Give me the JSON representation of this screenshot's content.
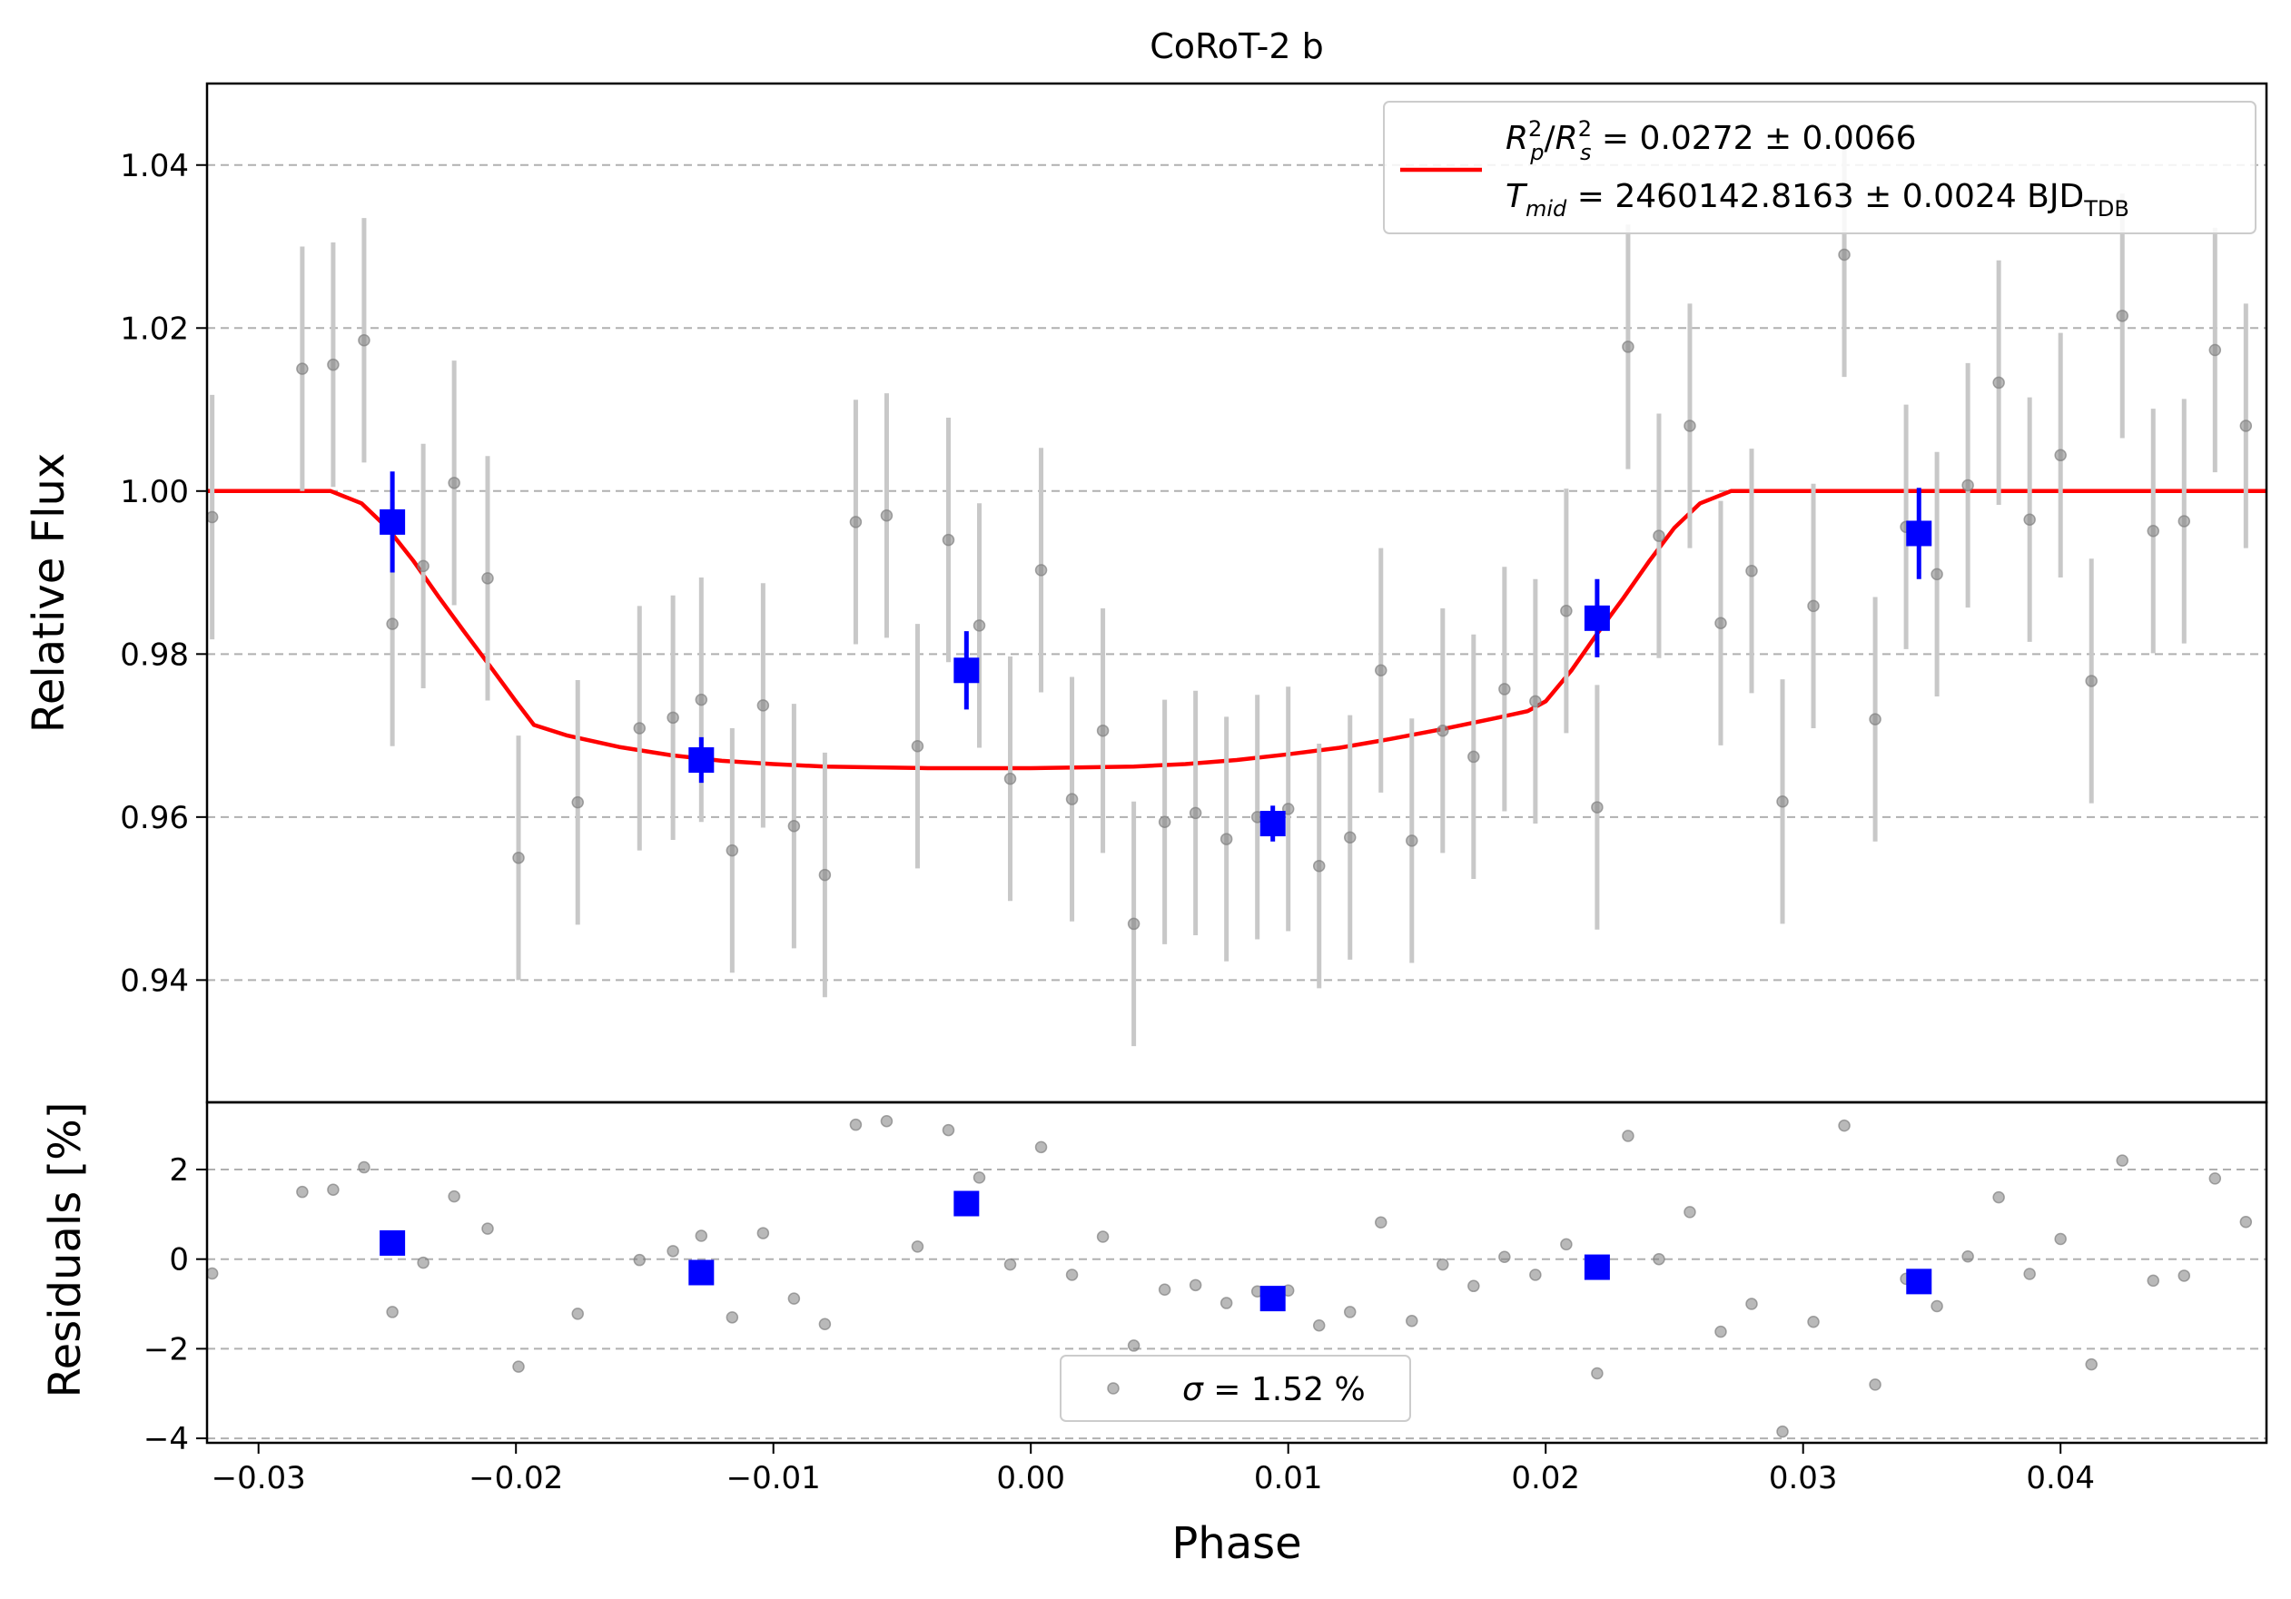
{
  "chart_data": [
    {
      "type": "scatter",
      "panel": "top",
      "title": "CoRoT-2 b",
      "xlabel": "",
      "ylabel": "Relative Flux",
      "xlim": [
        -0.032,
        0.048
      ],
      "ylim": [
        0.925,
        1.05
      ],
      "xticks_hidden": true,
      "yticks": [
        0.94,
        0.96,
        0.98,
        1.0,
        1.02,
        1.04
      ],
      "ytick_labels": [
        "0.94",
        "0.96",
        "0.98",
        "1.00",
        "1.02",
        "1.04"
      ],
      "grid": "horizontal-dashed",
      "legend_position": "top-right",
      "legend": [
        {
          "line1_math": "R_p^2/R_s^2",
          "line1_value": " = 0.0272 ± 0.0066",
          "line2_math": "T_mid",
          "line2_value": " = 2460142.8163 ± 0.0024 BJD",
          "line2_sub": "TDB",
          "color": "#ff0000"
        }
      ],
      "series": [
        {
          "kind": "data",
          "color": "#808080",
          "x": [
            -0.0318,
            -0.0283,
            -0.0271,
            -0.0259,
            -0.0248,
            -0.0236,
            -0.0224,
            -0.0211,
            -0.0199,
            -0.0176,
            -0.0152,
            -0.0139,
            -0.0128,
            -0.0116,
            -0.0104,
            -0.0092,
            -0.008,
            -0.0068,
            -0.0056,
            -0.0044,
            -0.0032,
            -0.002,
            -0.0008,
            0.0004,
            0.0016,
            0.0028,
            0.004,
            0.0052,
            0.0064,
            0.0076,
            0.0088,
            0.01,
            0.0112,
            0.0124,
            0.0136,
            0.0148,
            0.016,
            0.0172,
            0.0184,
            0.0196,
            0.0208,
            0.022,
            0.0232,
            0.0244,
            0.0256,
            0.0268,
            0.028,
            0.0292,
            0.0304,
            0.0316,
            0.0328,
            0.034,
            0.0352,
            0.0364,
            0.0376,
            0.0388,
            0.04,
            0.0412,
            0.0424,
            0.0436,
            0.0448,
            0.046,
            0.0472,
            0.0482
          ],
          "y": [
            0.9968,
            1.015,
            1.0155,
            1.0185,
            0.9837,
            0.9908,
            1.001,
            0.9893,
            0.955,
            0.9618,
            0.9709,
            0.9722,
            0.9744,
            0.9559,
            0.9737,
            0.9589,
            0.9529,
            0.9962,
            0.997,
            0.9687,
            0.994,
            0.9835,
            0.9647,
            0.9903,
            0.9622,
            0.9706,
            0.9469,
            0.9594,
            0.9605,
            0.9573,
            0.96,
            0.961,
            0.954,
            0.9575,
            0.978,
            0.9571,
            0.9706,
            0.9674,
            0.9757,
            0.9742,
            0.9853,
            0.9612,
            1.0177,
            0.9945,
            1.008,
            0.9838,
            0.9902,
            0.9619,
            0.9859,
            1.029,
            0.972,
            0.9956,
            0.9898,
            1.0007,
            1.0133,
            0.9965,
            1.0044,
            0.9767,
            1.0215,
            0.9951,
            0.9963,
            1.0173,
            1.008,
            0.9989
          ],
          "yerr": 0.015
        },
        {
          "kind": "binned",
          "color": "#0000ff",
          "x": [
            -0.0248,
            -0.0128,
            -0.0025,
            0.0094,
            0.022,
            0.0345
          ],
          "y": [
            0.9962,
            0.967,
            0.978,
            0.9592,
            0.9844,
            0.9948
          ],
          "yerr": [
            0.0062,
            0.0028,
            0.0048,
            0.0022,
            0.0048,
            0.0056
          ]
        },
        {
          "kind": "model",
          "color": "#ff0000",
          "x": [
            -0.032,
            -0.0272,
            -0.026,
            -0.025,
            -0.024,
            -0.023,
            -0.022,
            -0.021,
            -0.02,
            -0.0193,
            -0.018,
            -0.016,
            -0.014,
            -0.012,
            -0.01,
            -0.008,
            -0.006,
            -0.004,
            -0.002,
            0.0,
            0.002,
            0.004,
            0.006,
            0.008,
            0.01,
            0.012,
            0.014,
            0.016,
            0.018,
            0.0193,
            0.02,
            0.021,
            0.022,
            0.023,
            0.024,
            0.025,
            0.026,
            0.0272,
            0.048
          ],
          "y": [
            1.0,
            1.0,
            0.9985,
            0.9955,
            0.9915,
            0.987,
            0.9827,
            0.9785,
            0.9742,
            0.9713,
            0.97,
            0.9686,
            0.9676,
            0.9669,
            0.9665,
            0.9662,
            0.9661,
            0.966,
            0.966,
            0.966,
            0.9661,
            0.9662,
            0.9665,
            0.967,
            0.9677,
            0.9685,
            0.9696,
            0.9708,
            0.9721,
            0.973,
            0.9742,
            0.978,
            0.9825,
            0.9868,
            0.9913,
            0.9955,
            0.9985,
            1.0,
            1.0
          ]
        }
      ]
    },
    {
      "type": "scatter",
      "panel": "bottom",
      "xlabel": "Phase",
      "ylabel": "Residuals [%]",
      "xlim": [
        -0.032,
        0.048
      ],
      "ylim": [
        -4.1,
        3.5
      ],
      "xticks": [
        -0.03,
        -0.02,
        -0.01,
        0.0,
        0.01,
        0.02,
        0.03,
        0.04
      ],
      "xtick_labels": [
        "−0.03",
        "−0.02",
        "−0.01",
        "0.00",
        "0.01",
        "0.02",
        "0.03",
        "0.04"
      ],
      "yticks": [
        -4,
        -2,
        0,
        2
      ],
      "ytick_labels": [
        "−4",
        "−2",
        "0",
        "2"
      ],
      "grid": "horizontal-dashed",
      "legend_position": "bottom-center",
      "legend": [
        {
          "math": "σ",
          "value": " = 1.52 %",
          "color": "#808080"
        }
      ],
      "series": [
        {
          "kind": "data",
          "color": "#808080",
          "x": [
            -0.0318,
            -0.0283,
            -0.0271,
            -0.0259,
            -0.0248,
            -0.0236,
            -0.0224,
            -0.0211,
            -0.0199,
            -0.0176,
            -0.0152,
            -0.0139,
            -0.0128,
            -0.0116,
            -0.0104,
            -0.0092,
            -0.008,
            -0.0068,
            -0.0056,
            -0.0044,
            -0.0032,
            -0.002,
            -0.0008,
            0.0004,
            0.0016,
            0.0028,
            0.004,
            0.0052,
            0.0064,
            0.0076,
            0.0088,
            0.01,
            0.0112,
            0.0124,
            0.0136,
            0.0148,
            0.016,
            0.0172,
            0.0184,
            0.0196,
            0.0208,
            0.022,
            0.0232,
            0.0244,
            0.0256,
            0.0268,
            0.028,
            0.0292,
            0.0304,
            0.0316,
            0.0328,
            0.034,
            0.0352,
            0.0364,
            0.0376,
            0.0388,
            0.04,
            0.0412,
            0.0424,
            0.0436,
            0.0448,
            0.046,
            0.0472,
            0.0482
          ],
          "y": [
            -0.32,
            1.5,
            1.55,
            2.05,
            -1.18,
            -0.08,
            1.4,
            0.68,
            -2.4,
            -1.22,
            -0.02,
            0.18,
            0.52,
            -1.3,
            0.58,
            -0.88,
            -1.45,
            3.0,
            3.08,
            0.28,
            2.88,
            1.82,
            -0.12,
            2.5,
            -0.35,
            0.5,
            -1.93,
            -0.68,
            -0.58,
            -0.98,
            -0.72,
            -0.7,
            -1.48,
            -1.18,
            0.82,
            -1.38,
            -0.12,
            -0.6,
            0.05,
            -0.35,
            0.33,
            -2.55,
            2.75,
            0.0,
            1.05,
            -1.62,
            -1.0,
            -3.85,
            -1.4,
            2.98,
            -2.8,
            -0.44,
            -1.05,
            0.06,
            1.38,
            -0.33,
            0.45,
            -2.35,
            2.2,
            -0.48,
            -0.37,
            1.8,
            0.83,
            -0.06
          ]
        },
        {
          "kind": "binned",
          "color": "#0000ff",
          "x": [
            -0.0248,
            -0.0128,
            -0.0025,
            0.0094,
            0.022,
            0.0345
          ],
          "y": [
            0.36,
            -0.3,
            1.24,
            -0.88,
            -0.18,
            -0.5
          ]
        }
      ]
    }
  ]
}
